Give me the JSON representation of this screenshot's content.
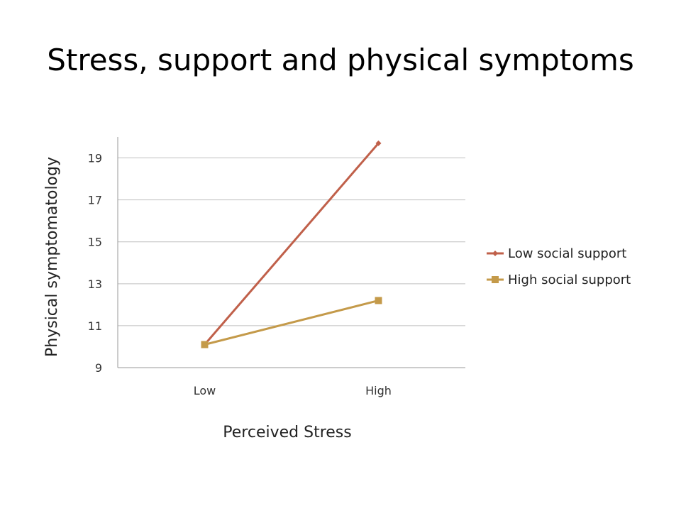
{
  "slide": {
    "title": "Stress, support and physical symptoms"
  },
  "chart_data": {
    "type": "line",
    "categories": [
      "Low",
      "High"
    ],
    "series": [
      {
        "name": "Low social support",
        "values": [
          10.1,
          19.7
        ],
        "color": "#C0604A",
        "marker": "diamond"
      },
      {
        "name": "High social support",
        "values": [
          10.1,
          12.2
        ],
        "color": "#C49A4A",
        "marker": "square"
      }
    ],
    "xlabel": "Perceived Stress",
    "ylabel": "Physical symptomatology",
    "ylim": [
      9,
      20
    ],
    "yticks": [
      9,
      11,
      13,
      15,
      17,
      19
    ],
    "grid": true,
    "legend": "right"
  }
}
